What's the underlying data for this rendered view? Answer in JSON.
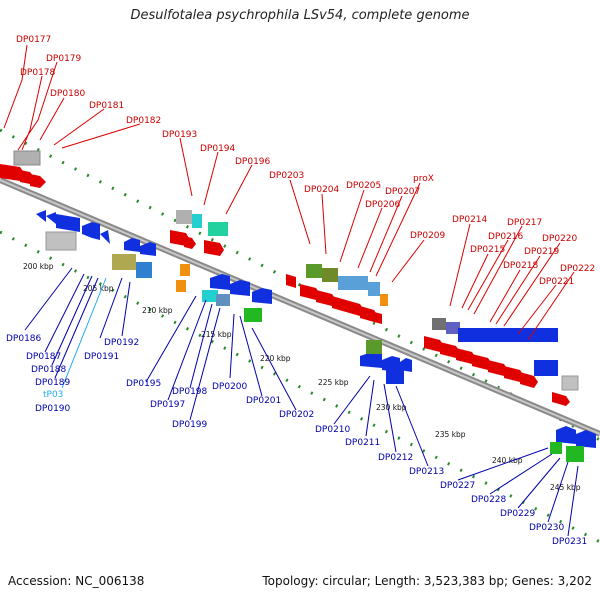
{
  "title": "Desulfotalea psychrophila LSv54, complete genome",
  "footer": {
    "accession": "Accession: NC_006138",
    "topology": "Topology: circular; Length: 3,523,383 bp; Genes: 3,202"
  },
  "colors": {
    "forward_label": "#cc0000",
    "reverse_label": "#0000aa",
    "trna_label": "#22aaee",
    "backbone": "#8a8a8a",
    "tick": "#2a8a2a"
  },
  "scale_labels": [
    "200 kbp",
    "205 kbp",
    "210 kbp",
    "215 kbp",
    "220 kbp",
    "225 kbp",
    "230 kbp",
    "235 kbp",
    "240 kbp",
    "245 kbp"
  ],
  "top_labels": [
    "DP0177",
    "DP0179",
    "DP0178",
    "DP0180",
    "DP0181",
    "DP0182",
    "DP0193",
    "DP0194",
    "DP0196",
    "DP0203",
    "DP0204",
    "DP0205",
    "DP0207",
    "proX",
    "DP0206",
    "DP0209",
    "DP0214",
    "DP0217",
    "DP0216",
    "DP0215",
    "DP0220",
    "DP0219",
    "DP0218",
    "DP0222",
    "DP0221"
  ],
  "bottom_labels": [
    "DP0186",
    "DP0187",
    "DP0188",
    "DP0189",
    "tP03",
    "DP0190",
    "DP0191",
    "DP0192",
    "DP0195",
    "DP0198",
    "DP0197",
    "DP0199",
    "DP0200",
    "DP0201",
    "DP0202",
    "DP0210",
    "DP0211",
    "DP0212",
    "DP0213",
    "DP0227",
    "DP0228",
    "DP0229",
    "DP0230",
    "DP0231"
  ]
}
